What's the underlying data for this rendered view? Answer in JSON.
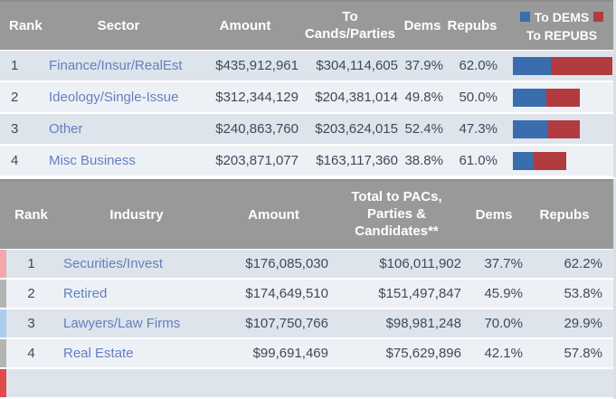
{
  "colors": {
    "header_bg": "#999999",
    "header_text": "#ffffff",
    "row_dark": "#dee4ec",
    "row_light": "#edf1f6",
    "text": "#3f4a58",
    "link": "#6280c0",
    "dem_blue": "#3a6dae",
    "repub_red": "#b23b3f",
    "strip_pink": "#f4a6ab",
    "strip_gray": "#b4b4b4",
    "strip_blue": "#abcdf0",
    "strip_red": "#e24a4a"
  },
  "sector_table": {
    "headers": {
      "rank": "Rank",
      "sector": "Sector",
      "amount": "Amount",
      "to_cands": "To Cands/Parties",
      "dems": "Dems",
      "repubs": "Repubs"
    },
    "legend": {
      "dems_label": "To DEMS",
      "repubs_label": "To REPUBS"
    },
    "bar_max_width": 110,
    "rows": [
      {
        "rank": "1",
        "sector": "Finance/Insur/RealEst",
        "amount": "$435,912,961",
        "to_cands": "$304,114,605",
        "dems": "37.9%",
        "repubs": "62.0%",
        "dems_pct": 37.9,
        "repubs_pct": 62.0,
        "to_cands_value": 304114605
      },
      {
        "rank": "2",
        "sector": "Ideology/Single-Issue",
        "amount": "$312,344,129",
        "to_cands": "$204,381,014",
        "dems": "49.8%",
        "repubs": "50.0%",
        "dems_pct": 49.8,
        "repubs_pct": 50.0,
        "to_cands_value": 204381014
      },
      {
        "rank": "3",
        "sector": "Other",
        "amount": "$240,863,760",
        "to_cands": "$203,624,015",
        "dems": "52.4%",
        "repubs": "47.3%",
        "dems_pct": 52.4,
        "repubs_pct": 47.3,
        "to_cands_value": 203624015
      },
      {
        "rank": "4",
        "sector": "Misc Business",
        "amount": "$203,871,077",
        "to_cands": "$163,117,360",
        "dems": "38.8%",
        "repubs": "61.0%",
        "dems_pct": 38.8,
        "repubs_pct": 61.0,
        "to_cands_value": 163117360
      }
    ]
  },
  "industry_table": {
    "headers": {
      "rank": "Rank",
      "industry": "Industry",
      "amount": "Amount",
      "total": "Total to PACs, Parties & Candidates**",
      "dems": "Dems",
      "repubs": "Repubs"
    },
    "rows": [
      {
        "rank": "1",
        "industry": "Securities/Invest",
        "amount": "$176,085,030",
        "total": "$106,011,902",
        "dems": "37.7%",
        "repubs": "62.2%",
        "strip": "#f4a6ab"
      },
      {
        "rank": "2",
        "industry": "Retired",
        "amount": "$174,649,510",
        "total": "$151,497,847",
        "dems": "45.9%",
        "repubs": "53.8%",
        "strip": "#b4b4b4"
      },
      {
        "rank": "3",
        "industry": "Lawyers/Law Firms",
        "amount": "$107,750,766",
        "total": "$98,981,248",
        "dems": "70.0%",
        "repubs": "29.9%",
        "strip": "#abcdf0"
      },
      {
        "rank": "4",
        "industry": "Real Estate",
        "amount": "$99,691,469",
        "total": "$75,629,896",
        "dems": "42.1%",
        "repubs": "57.8%",
        "strip": "#b4b4b4"
      }
    ],
    "next_row_strip": "#e24a4a"
  }
}
